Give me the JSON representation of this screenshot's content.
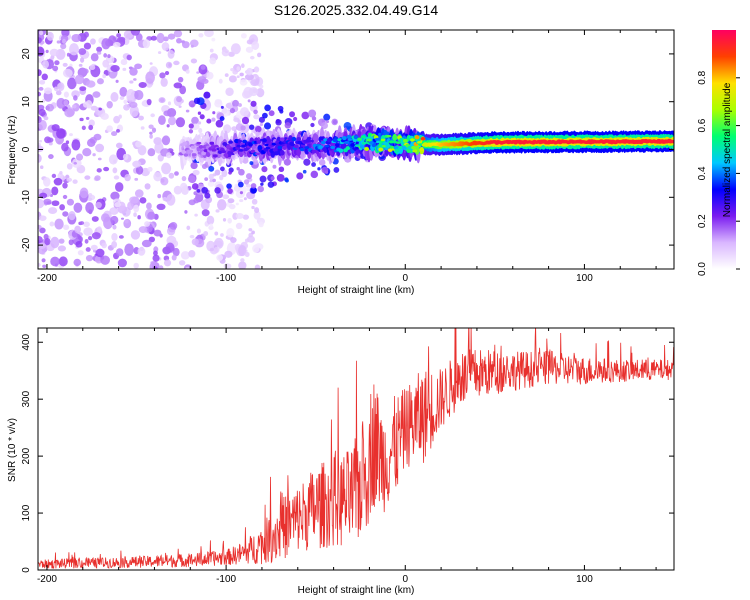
{
  "title": "S126.2025.332.04.49.G14",
  "chart_data": [
    {
      "type": "heatmap",
      "title": "S126.2025.332.04.49.G14",
      "xlabel": "Height of straight line (km)",
      "ylabel": "Frequency (Hz)",
      "xlim": [
        -205,
        150
      ],
      "ylim": [
        -25,
        25
      ],
      "x_ticks": [
        -200,
        -100,
        0,
        100
      ],
      "x_tick_labels": [
        "-200",
        "-100",
        "0",
        "100"
      ],
      "y_ticks": [
        -20,
        -10,
        0,
        10,
        20
      ],
      "y_tick_labels": [
        "-20",
        "-10",
        "0",
        "10",
        "20"
      ],
      "colorbar": {
        "label": "Normalized spectral amplitude",
        "range": [
          0,
          1
        ],
        "ticks": [
          0.0,
          0.2,
          0.4,
          0.6,
          0.8
        ],
        "tick_labels": [
          "0.0",
          "0.2",
          "0.4",
          "0.6",
          "0.8"
        ],
        "colors": [
          "#ffffff",
          "#d9b6ff",
          "#7a1cf0",
          "#0000ff",
          "#00c8ff",
          "#00ff70",
          "#aaff00",
          "#ffe000",
          "#ff4000",
          "#ff0060"
        ]
      },
      "ridge": {
        "description": "Dominant frequency ridge around 1-2 Hz, strong above ~-20 km",
        "x": [
          -120,
          -100,
          -80,
          -60,
          -40,
          -20,
          0,
          20,
          50,
          100,
          150
        ],
        "frequency": [
          0.0,
          0.2,
          0.5,
          0.8,
          1.0,
          1.5,
          1.2,
          1.0,
          1.5,
          1.6,
          1.7
        ],
        "amplitude": [
          0.15,
          0.25,
          0.3,
          0.3,
          0.35,
          0.55,
          0.6,
          0.8,
          0.95,
          0.95,
          0.95
        ]
      },
      "noise_region": {
        "x_range": [
          -205,
          -90
        ],
        "frequency_range": [
          -25,
          25
        ],
        "amplitude": [
          0.05,
          0.2
        ]
      }
    },
    {
      "type": "line",
      "xlabel": "Height of straight line (km)",
      "ylabel": "SNR (10 * v/v)",
      "xlim": [
        -205,
        150
      ],
      "ylim": [
        0,
        425
      ],
      "x_ticks": [
        -200,
        -100,
        0,
        100
      ],
      "x_tick_labels": [
        "-200",
        "-100",
        "0",
        "100"
      ],
      "y_ticks": [
        0,
        100,
        200,
        300,
        400
      ],
      "y_tick_labels": [
        "0",
        "100",
        "200",
        "300",
        "400"
      ],
      "color": "#e8302d",
      "series": [
        {
          "name": "SNR",
          "x": [
            -205,
            -180,
            -150,
            -120,
            -100,
            -90,
            -80,
            -70,
            -60,
            -50,
            -40,
            -30,
            -22,
            -18,
            -12,
            -5,
            0,
            5,
            10,
            20,
            30,
            40,
            60,
            80,
            100,
            120,
            150
          ],
          "mean": [
            10,
            12,
            14,
            17,
            22,
            30,
            45,
            70,
            90,
            110,
            120,
            125,
            170,
            230,
            190,
            220,
            250,
            260,
            270,
            300,
            335,
            345,
            350,
            355,
            350,
            350,
            352
          ],
          "spread": [
            8,
            9,
            10,
            12,
            14,
            20,
            35,
            55,
            60,
            75,
            80,
            90,
            110,
            120,
            90,
            90,
            70,
            80,
            85,
            55,
            50,
            45,
            35,
            30,
            25,
            20,
            18
          ]
        }
      ]
    }
  ]
}
